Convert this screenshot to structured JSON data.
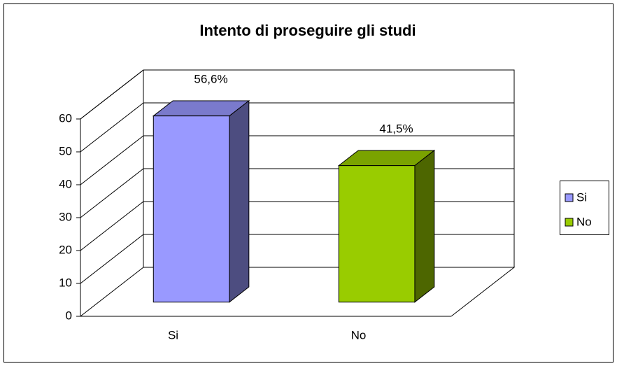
{
  "chart_data": {
    "type": "bar3d",
    "title": "Intento di proseguire gli studi",
    "categories": [
      "Si",
      "No"
    ],
    "values": [
      56.6,
      41.5
    ],
    "value_labels": [
      "56,6%",
      "41,5%"
    ],
    "colors": [
      "#9999ff",
      "#99cc00"
    ],
    "ylim": [
      0,
      60
    ],
    "yticks": [
      0,
      10,
      20,
      30,
      40,
      50,
      60
    ],
    "grid": true,
    "legend": "right"
  }
}
